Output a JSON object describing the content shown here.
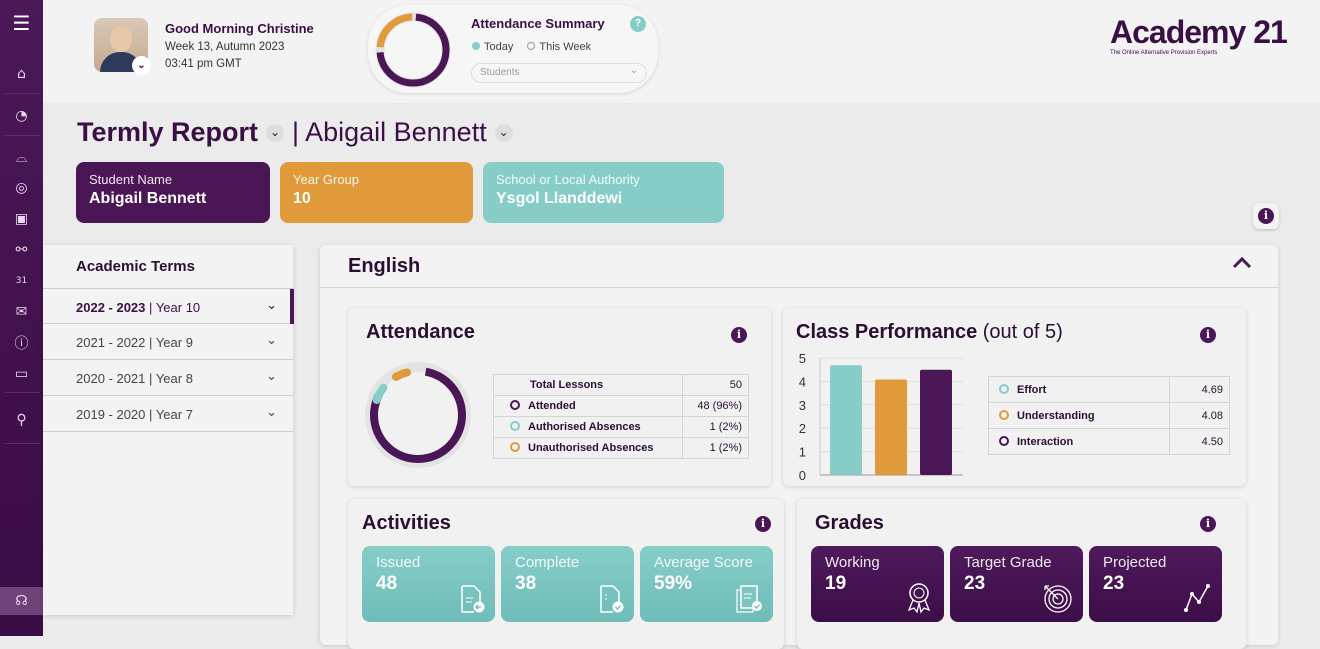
{
  "sidebar": {
    "items": [
      "menu-icon",
      "home-icon",
      "dashboard-icon",
      "graduation-cap-icon",
      "target-icon",
      "calendar-check-icon",
      "network-icon",
      "calendar-31-icon",
      "mail-icon",
      "info-icon",
      "monitor-icon",
      "key-user-icon",
      "headset-icon"
    ]
  },
  "header": {
    "greeting": "Good Morning Christine",
    "week": "Week 13, Autumn 2023",
    "time": "03:41 pm GMT",
    "attendance_summary": {
      "title": "Attendance Summary",
      "help": "?",
      "option_today": "Today",
      "option_week": "This Week",
      "selected": "Today",
      "dropdown": "Students"
    },
    "logo": {
      "name": "Academy 21",
      "tagline": "The Online Alternative Provision Experts"
    }
  },
  "page": {
    "report_type": "Termly Report",
    "student": "| Abigail Bennett"
  },
  "info_cards": [
    {
      "label": "Student Name",
      "value": "Abigail Bennett",
      "color": "#4a1656"
    },
    {
      "label": "Year Group",
      "value": "10",
      "color": "#e09a3a"
    },
    {
      "label": "School or Local Authority",
      "value": "Ysgol Llanddewi",
      "color": "#86cdc8"
    }
  ],
  "terms": {
    "title": "Academic Terms",
    "items": [
      {
        "years": "2022 - 2023",
        "sep": "|",
        "year": "Year 10",
        "active": true
      },
      {
        "years": "2021 - 2022",
        "sep": "|",
        "year": "Year 9"
      },
      {
        "years": "2020 - 2021",
        "sep": "|",
        "year": "Year 8"
      },
      {
        "years": "2019 - 2020",
        "sep": "|",
        "year": "Year 7"
      }
    ]
  },
  "subject": {
    "name": "English",
    "attendance": {
      "title": "Attendance",
      "rows": [
        {
          "label": "Total Lessons",
          "value": "50"
        },
        {
          "label": "Attended",
          "value": "48 (96%)",
          "color": "#4a1656"
        },
        {
          "label": "Authorised Absences",
          "value": "1 (2%)",
          "color": "#86cdc8"
        },
        {
          "label": "Unauthorised Absences",
          "value": "1 (2%)",
          "color": "#e09a3a"
        }
      ]
    },
    "performance": {
      "title": "Class Performance",
      "suffix": "(out of 5)",
      "rows": [
        {
          "label": "Effort",
          "value": "4.69",
          "color": "#86cdc8"
        },
        {
          "label": "Understanding",
          "value": "4.08",
          "color": "#e09a3a"
        },
        {
          "label": "Interaction",
          "value": "4.50",
          "color": "#4a1656"
        }
      ]
    },
    "activities": {
      "title": "Activities",
      "tiles": [
        {
          "label": "Issued",
          "value": "48"
        },
        {
          "label": "Complete",
          "value": "38"
        },
        {
          "label": "Average Score",
          "value": "59%"
        }
      ]
    },
    "grades": {
      "title": "Grades",
      "tiles": [
        {
          "label": "Working",
          "value": "19"
        },
        {
          "label": "Target Grade",
          "value": "23"
        },
        {
          "label": "Projected",
          "value": "23"
        }
      ]
    }
  },
  "chart_data": {
    "type": "bar",
    "categories": [
      "Effort",
      "Understanding",
      "Interaction"
    ],
    "values": [
      4.69,
      4.08,
      4.5
    ],
    "colors": [
      "#86cdc8",
      "#e09a3a",
      "#4a1656"
    ],
    "ylim": [
      0,
      5
    ],
    "yticks": [
      "0",
      "1",
      "2",
      "3",
      "4",
      "5"
    ],
    "grid": true
  }
}
